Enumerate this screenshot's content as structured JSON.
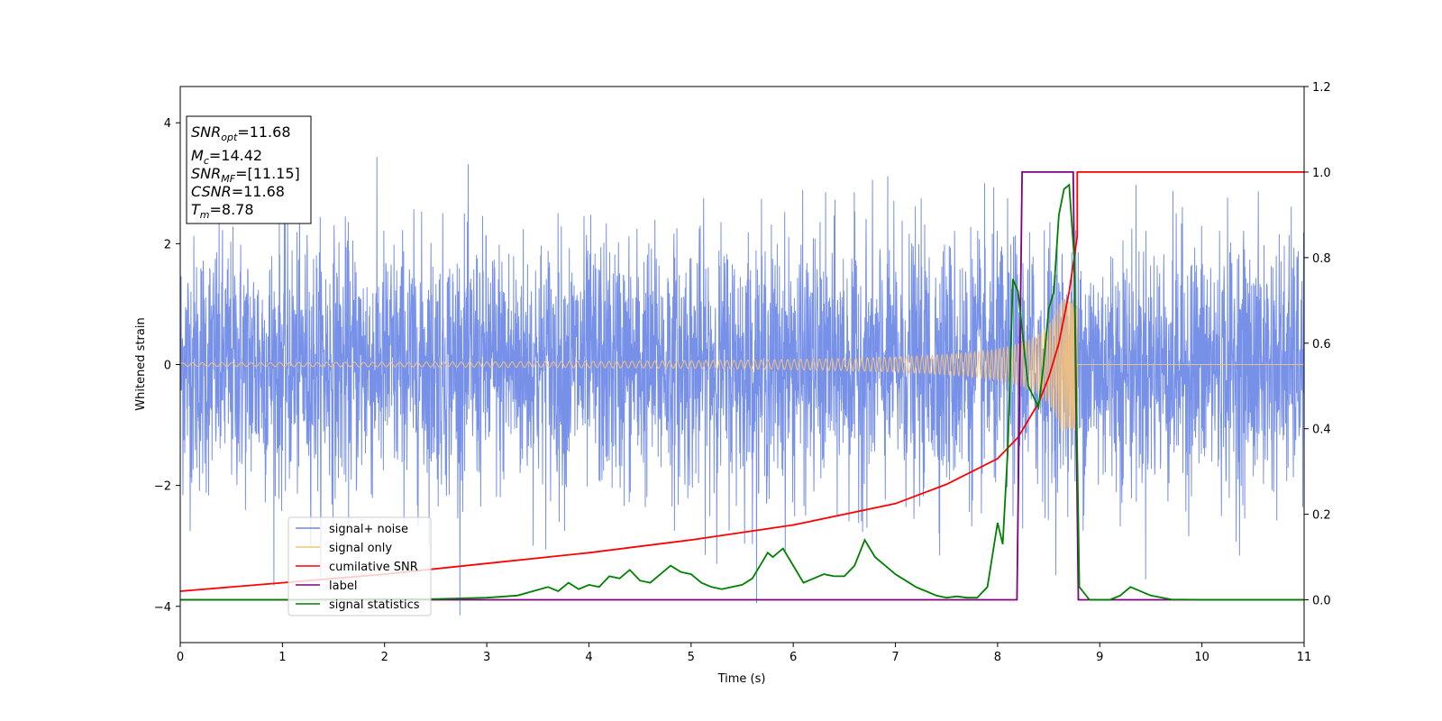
{
  "chart_data": {
    "type": "line",
    "xlabel": "Time (s)",
    "ylabel": "Whitened strain",
    "xlim": [
      0,
      11
    ],
    "ylim_left": [
      -4.6,
      4.6
    ],
    "ylim_right": [
      -0.1,
      1.2
    ],
    "x_ticks": [
      0,
      1,
      2,
      3,
      4,
      5,
      6,
      7,
      8,
      9,
      10,
      11
    ],
    "y_ticks_left": [
      -4,
      -2,
      0,
      2,
      4
    ],
    "y_ticks_right": [
      0.0,
      0.2,
      0.4,
      0.6,
      0.8,
      1.0,
      1.2
    ],
    "legend_position": "lower-left",
    "annotation": {
      "snr_opt": {
        "main": "SNR",
        "sub": "opt",
        "value": "=11.68"
      },
      "mc": {
        "main": "M",
        "sub": "c",
        "value": "=14.42"
      },
      "snr_mf": {
        "main": "SNR",
        "sub": "MF",
        "value": "=[11.15]"
      },
      "csnr": {
        "main": "CSNR",
        "value": "=11.68"
      },
      "tm": {
        "main": "T",
        "sub": "m",
        "value": "=8.78"
      }
    },
    "series": [
      {
        "name": "signal+ noise",
        "axis": "left",
        "color": "#6b87e6",
        "style": "noise",
        "sigma": 1.0,
        "merger_time": 8.78,
        "peak_values": [
          4.15,
          3.83,
          -4.15,
          -4.1,
          -4.0
        ]
      },
      {
        "name": "signal only",
        "axis": "left",
        "color": "#f5c27a",
        "style": "chirp",
        "start_amplitude": 0.03,
        "end_amplitude": 1.1,
        "merger_time": 8.78
      },
      {
        "name": "cumilative SNR",
        "axis": "right",
        "color": "#ff0000",
        "x": [
          0,
          1,
          2,
          3,
          4,
          5,
          6,
          7,
          7.5,
          8,
          8.2,
          8.4,
          8.5,
          8.6,
          8.7,
          8.75,
          8.78,
          8.78,
          11
        ],
        "values": [
          0.02,
          0.04,
          0.06,
          0.085,
          0.11,
          0.14,
          0.175,
          0.225,
          0.27,
          0.33,
          0.38,
          0.46,
          0.52,
          0.6,
          0.72,
          0.8,
          0.85,
          1.0,
          1.0
        ]
      },
      {
        "name": "label",
        "axis": "right",
        "color": "#800080",
        "x": [
          0,
          8.19,
          8.24,
          8.74,
          8.79,
          11
        ],
        "values": [
          0.0,
          0.0,
          1.0,
          1.0,
          0.0,
          0.0
        ]
      },
      {
        "name": "signal statistics",
        "axis": "right",
        "color": "#008000",
        "x": [
          0,
          1,
          2,
          2.5,
          3,
          3.3,
          3.6,
          3.7,
          3.8,
          3.9,
          4.0,
          4.1,
          4.2,
          4.3,
          4.4,
          4.5,
          4.6,
          4.7,
          4.8,
          4.9,
          5.0,
          5.1,
          5.2,
          5.3,
          5.4,
          5.5,
          5.6,
          5.7,
          5.75,
          5.8,
          5.9,
          6.0,
          6.1,
          6.2,
          6.3,
          6.4,
          6.5,
          6.6,
          6.7,
          6.8,
          6.9,
          7.0,
          7.1,
          7.2,
          7.3,
          7.4,
          7.5,
          7.6,
          7.7,
          7.8,
          7.9,
          8.0,
          8.05,
          8.1,
          8.15,
          8.2,
          8.3,
          8.4,
          8.45,
          8.5,
          8.55,
          8.6,
          8.65,
          8.7,
          8.75,
          8.8,
          8.9,
          9.1,
          9.2,
          9.3,
          9.5,
          9.7,
          10.0,
          10.5,
          11.0
        ],
        "values": [
          0.0,
          0.0,
          0.002,
          0.002,
          0.005,
          0.01,
          0.03,
          0.02,
          0.04,
          0.025,
          0.035,
          0.03,
          0.055,
          0.05,
          0.07,
          0.045,
          0.04,
          0.06,
          0.08,
          0.065,
          0.06,
          0.04,
          0.03,
          0.025,
          0.03,
          0.035,
          0.05,
          0.09,
          0.11,
          0.1,
          0.12,
          0.08,
          0.04,
          0.05,
          0.06,
          0.055,
          0.055,
          0.08,
          0.14,
          0.1,
          0.08,
          0.06,
          0.045,
          0.03,
          0.02,
          0.01,
          0.005,
          0.008,
          0.005,
          0.005,
          0.03,
          0.18,
          0.13,
          0.35,
          0.75,
          0.72,
          0.5,
          0.45,
          0.55,
          0.68,
          0.72,
          0.9,
          0.96,
          0.97,
          0.8,
          0.03,
          0.0,
          0.0,
          0.01,
          0.03,
          0.01,
          0.001,
          0.0,
          0.0,
          0.0
        ]
      }
    ]
  }
}
